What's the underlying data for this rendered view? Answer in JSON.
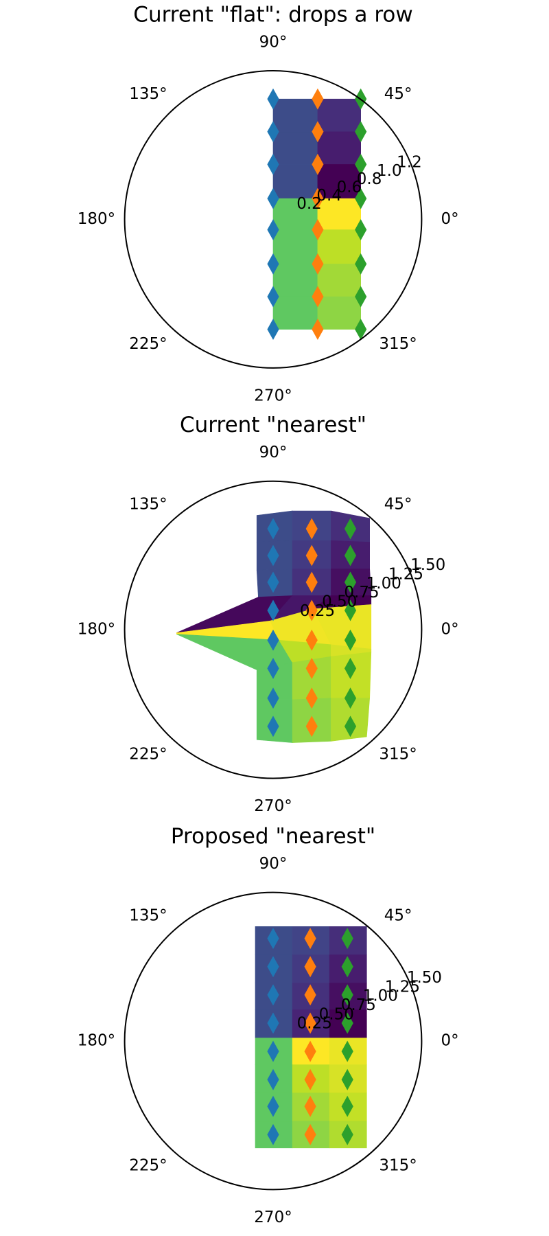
{
  "chart_data": [
    {
      "type": "pcolormesh",
      "title": "Current \"flat\": drops a row",
      "xlim": [
        -1,
        1
      ],
      "ylim": [
        -1,
        1
      ],
      "colormap": "viridis",
      "clim": [
        0,
        1
      ],
      "rlim": [
        -0.16,
        1.21
      ],
      "rlabel_angle": 22.5,
      "rticks": [
        0.2,
        0.4,
        0.6,
        0.8,
        {
          "value": 1,
          "label": "1.0"
        },
        1.2
      ],
      "thetaticks": [
        {
          "value": 0,
          "label": "0°"
        },
        {
          "value": 45,
          "label": "45°"
        },
        {
          "value": 90,
          "label": "90°"
        },
        {
          "value": 135,
          "label": "135°"
        },
        {
          "value": 180,
          "label": "180°"
        },
        {
          "value": 225,
          "label": "225°"
        },
        {
          "value": 270,
          "label": "270°"
        },
        {
          "value": 315,
          "label": "315°"
        }
      ],
      "mesh_x": [
        0,
        0.3,
        0.59
      ],
      "mesh_y": [
        0.81,
        0.59,
        0.37,
        0.14,
        -0.07,
        -0.3,
        -0.52,
        -0.74
      ],
      "values": [
        [
          0.23,
          0.13
        ],
        [
          0.23,
          0.08
        ],
        [
          0.23,
          0.0
        ],
        [
          0.75,
          1.0
        ],
        [
          0.75,
          0.9
        ],
        [
          0.75,
          0.86
        ],
        [
          0.75,
          0.83
        ]
      ],
      "series": [
        {
          "color": "#1f77b4",
          "x": 0,
          "values": [
            0.81,
            0.59,
            0.37,
            0.14,
            -0.07,
            -0.3,
            -0.52,
            -0.74
          ]
        },
        {
          "color": "#ff7f0e",
          "x": 0.3,
          "values": [
            0.81,
            0.59,
            0.37,
            0.14,
            -0.07,
            -0.3,
            -0.52,
            -0.74
          ]
        },
        {
          "color": "#2ca02c",
          "x": 0.59,
          "values": [
            0.81,
            0.59,
            0.37,
            0.14,
            -0.07,
            -0.3,
            -0.52,
            -0.74
          ]
        }
      ]
    },
    {
      "type": "pcolormesh",
      "title": "Current \"nearest\"",
      "xlim": [
        -1,
        1
      ],
      "ylim": [
        -1,
        1
      ],
      "colormap": "viridis",
      "clim": [
        0,
        1
      ],
      "rlim": [
        -0.25,
        1.3
      ],
      "rlabel_angle": 22.5,
      "rticks": [
        0.25,
        {
          "value": 0.5,
          "label": "0.50"
        },
        0.75,
        {
          "value": 1,
          "label": "1.00"
        },
        1.25,
        {
          "value": 1.5,
          "label": "1.50"
        }
      ],
      "thetaticks": [
        {
          "value": 0,
          "label": "0°"
        },
        {
          "value": 45,
          "label": "45°"
        },
        {
          "value": 90,
          "label": "90°"
        },
        {
          "value": 135,
          "label": "135°"
        },
        {
          "value": 180,
          "label": "180°"
        },
        {
          "value": 225,
          "label": "225°"
        },
        {
          "value": 270,
          "label": "270°"
        },
        {
          "value": 315,
          "label": "315°"
        }
      ],
      "mesh_x": [
        [
          -0.11,
          0.13,
          0.39,
          0.65
        ],
        [
          -0.11,
          0.13,
          0.39,
          0.65
        ],
        [
          -0.11,
          0.13,
          0.39,
          0.65
        ],
        [
          -0.1,
          0.13,
          0.39,
          0.66
        ],
        [
          -0.65,
          -0.02,
          0.27,
          0.66
        ],
        [
          -0.65,
          0.04,
          0.39,
          0.66
        ],
        [
          -0.11,
          0.13,
          0.39,
          0.66
        ],
        [
          -0.11,
          0.13,
          0.39,
          0.65
        ],
        [
          -0.11,
          0.13,
          0.39,
          0.63
        ]
      ],
      "mesh_y": [
        [
          0.77,
          0.8,
          0.8,
          0.75
        ],
        [
          0.59,
          0.6,
          0.6,
          0.59
        ],
        [
          0.4,
          0.41,
          0.41,
          0.41
        ],
        [
          0.22,
          0.23,
          0.23,
          0.23
        ],
        [
          -0.02,
          0.06,
          0.14,
          0.17
        ],
        [
          -0.03,
          -0.07,
          -0.1,
          -0.13
        ],
        [
          -0.27,
          -0.22,
          -0.18,
          -0.15
        ],
        [
          -0.47,
          -0.47,
          -0.46,
          -0.46
        ],
        [
          -0.74,
          -0.76,
          -0.75,
          -0.72
        ]
      ],
      "values": [
        [
          0.23,
          0.2,
          0.13
        ],
        [
          0.23,
          0.17,
          0.08
        ],
        [
          0.23,
          0.14,
          0.04
        ],
        [
          0.02,
          0.06,
          0.0
        ],
        [
          1.0,
          0.98,
          0.97
        ],
        [
          0.75,
          0.9,
          0.94
        ],
        [
          0.75,
          0.86,
          0.91
        ],
        [
          0.75,
          0.83,
          0.88
        ]
      ],
      "series": [
        {
          "color": "#1f77b4",
          "x": 0,
          "values": [
            0.68,
            0.5,
            0.32,
            0.13,
            -0.07,
            -0.26,
            -0.46,
            -0.65
          ]
        },
        {
          "color": "#ff7f0e",
          "x": 0.26,
          "values": [
            0.68,
            0.5,
            0.32,
            0.13,
            -0.07,
            -0.26,
            -0.46,
            -0.65
          ]
        },
        {
          "color": "#2ca02c",
          "x": 0.52,
          "values": [
            0.68,
            0.5,
            0.32,
            0.13,
            -0.07,
            -0.26,
            -0.46,
            -0.65
          ]
        }
      ]
    },
    {
      "type": "pcolormesh",
      "title": "Proposed \"nearest\"",
      "xlim": [
        -1,
        1
      ],
      "ylim": [
        -1,
        1
      ],
      "colormap": "viridis",
      "clim": [
        0,
        1
      ],
      "rlim": [
        -0.22,
        1.34
      ],
      "rlabel_angle": 22.5,
      "rticks": [
        0.25,
        {
          "value": 0.5,
          "label": "0.50"
        },
        0.75,
        {
          "value": 1,
          "label": "1.00"
        },
        1.25,
        {
          "value": 1.5,
          "label": "1.50"
        }
      ],
      "thetaticks": [
        {
          "value": 0,
          "label": "0°"
        },
        {
          "value": 45,
          "label": "45°"
        },
        {
          "value": 90,
          "label": "90°"
        },
        {
          "value": 135,
          "label": "135°"
        },
        {
          "value": 180,
          "label": "180°"
        },
        {
          "value": 225,
          "label": "225°"
        },
        {
          "value": 270,
          "label": "270°"
        },
        {
          "value": 315,
          "label": "315°"
        }
      ],
      "mesh_x": [
        -0.12,
        0.13,
        0.38,
        0.63
      ],
      "mesh_y": [
        0.77,
        0.58,
        0.39,
        0.21,
        0.02,
        -0.16,
        -0.35,
        -0.54,
        -0.72
      ],
      "values": [
        [
          0.23,
          0.2,
          0.13
        ],
        [
          0.23,
          0.17,
          0.08
        ],
        [
          0.23,
          0.14,
          0.04
        ],
        [
          0.23,
          0.1,
          0.0
        ],
        [
          0.75,
          1.0,
          0.97
        ],
        [
          0.75,
          0.9,
          0.94
        ],
        [
          0.75,
          0.86,
          0.91
        ],
        [
          0.75,
          0.83,
          0.88
        ]
      ],
      "series": [
        {
          "color": "#1f77b4",
          "x": 0,
          "values": [
            0.69,
            0.5,
            0.31,
            0.12,
            -0.07,
            -0.26,
            -0.44,
            -0.63
          ]
        },
        {
          "color": "#ff7f0e",
          "x": 0.25,
          "values": [
            0.69,
            0.5,
            0.31,
            0.12,
            -0.07,
            -0.26,
            -0.44,
            -0.63
          ]
        },
        {
          "color": "#2ca02c",
          "x": 0.5,
          "values": [
            0.69,
            0.5,
            0.31,
            0.12,
            -0.07,
            -0.26,
            -0.44,
            -0.63
          ]
        }
      ]
    }
  ]
}
